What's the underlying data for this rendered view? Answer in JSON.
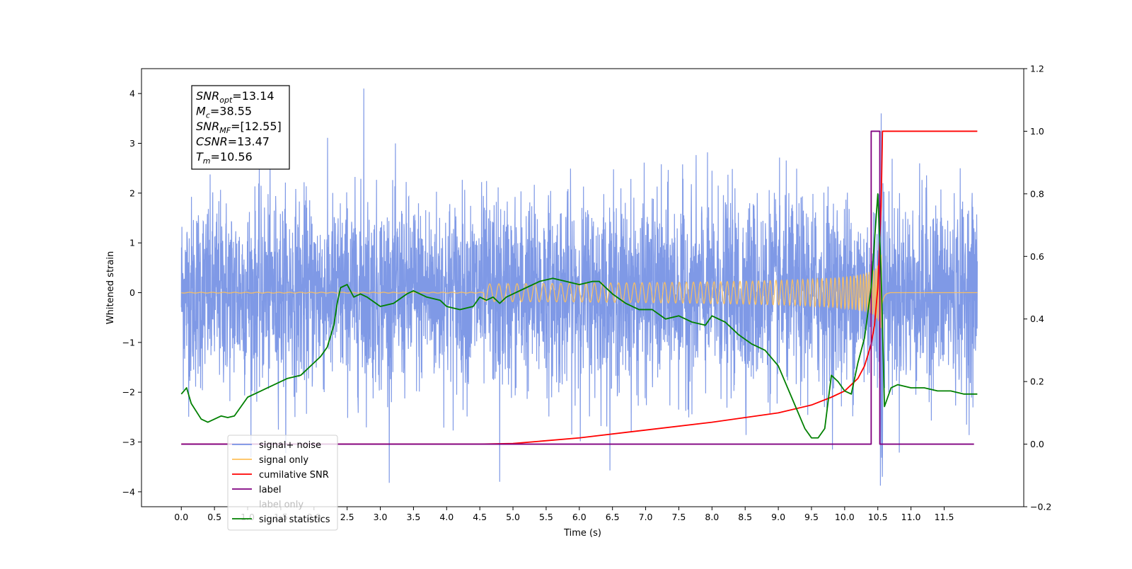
{
  "chart_data": {
    "type": "line",
    "xlabel": "Time (s)",
    "ylabel": "Whitened strain",
    "xlim": [
      -0.6,
      12.7
    ],
    "ylim": [
      -4.3,
      4.5
    ],
    "y2lim": [
      -0.2,
      1.2
    ],
    "x_ticks": [
      "0.0",
      "0.5",
      "1.0",
      "1.5",
      "2.0",
      "2.5",
      "3.0",
      "3.5",
      "4.0",
      "4.5",
      "5.0",
      "5.5",
      "6.0",
      "6.5",
      "7.0",
      "7.5",
      "8.0",
      "8.5",
      "9.0",
      "9.5",
      "10.0",
      "10.5",
      "11.0",
      "11.5"
    ],
    "y_ticks": [
      "4",
      "3",
      "2",
      "1",
      "0",
      "−1",
      "−2",
      "−3",
      "−4"
    ],
    "y2_ticks": [
      "1.2",
      "1.0",
      "0.8",
      "0.6",
      "0.4",
      "0.2",
      "0.0",
      "−0.2"
    ],
    "grid": false,
    "legend_position": "lower-left",
    "annotation": {
      "lines": [
        {
          "main": "SNR",
          "sub": "opt",
          "rest": "=13.14"
        },
        {
          "main": "M",
          "sub": "c",
          "rest": "=38.55"
        },
        {
          "main": "SNR",
          "sub": "MF",
          "rest": "=[12.55]"
        },
        {
          "main": "CSNR",
          "sub": "",
          "rest": "=13.47"
        },
        {
          "main": "T",
          "sub": "m",
          "rest": "=10.56"
        }
      ]
    },
    "series": [
      {
        "name": "signal+ noise",
        "color": "#7893e5",
        "axis": "left",
        "kind": "noise",
        "x_start": 0.0,
        "x_end": 12.0,
        "std": 1.0,
        "peak_time": 10.56,
        "notable_spikes": [
          [
            2.75,
            4.1
          ],
          [
            4.8,
            -3.8
          ],
          [
            10.55,
            3.6
          ],
          [
            10.57,
            -3.7
          ]
        ]
      },
      {
        "name": "signal only",
        "color": "#ffc15a",
        "axis": "left",
        "kind": "chirp",
        "x_start": 0.0,
        "x_end": 12.0,
        "merger_time": 10.56,
        "peak_amplitude": 1.1
      },
      {
        "name": "cumilative SNR",
        "color": "#ff0000",
        "axis": "right",
        "x": [
          0.0,
          4.5,
          5.0,
          6.0,
          7.0,
          8.0,
          9.0,
          9.5,
          9.8,
          10.0,
          10.2,
          10.3,
          10.4,
          10.45,
          10.5,
          10.55,
          10.57,
          12.0
        ],
        "y": [
          0.0,
          0.0,
          0.002,
          0.02,
          0.045,
          0.07,
          0.1,
          0.125,
          0.15,
          0.17,
          0.21,
          0.25,
          0.32,
          0.38,
          0.5,
          0.76,
          1.0,
          1.0
        ]
      },
      {
        "name": "label",
        "color": "#800080",
        "axis": "right",
        "x": [
          0.0,
          10.4,
          10.4,
          10.47,
          10.47,
          10.53,
          10.53,
          11.95
        ],
        "y": [
          0.0,
          0.0,
          1.0,
          1.0,
          1.0,
          1.0,
          0.0,
          0.0
        ]
      },
      {
        "name": "label only",
        "color": "#800080",
        "axis": "right",
        "hidden_behind_legend": true,
        "x": [],
        "y": []
      },
      {
        "name": "signal statistics",
        "color": "#008000",
        "axis": "right",
        "x": [
          0.0,
          0.08,
          0.15,
          0.3,
          0.4,
          0.5,
          0.6,
          0.7,
          0.8,
          0.9,
          1.0,
          1.2,
          1.4,
          1.6,
          1.8,
          2.0,
          2.1,
          2.2,
          2.3,
          2.35,
          2.4,
          2.5,
          2.6,
          2.7,
          2.8,
          3.0,
          3.2,
          3.4,
          3.5,
          3.7,
          3.9,
          4.0,
          4.2,
          4.4,
          4.5,
          4.6,
          4.7,
          4.8,
          4.9,
          5.0,
          5.2,
          5.4,
          5.6,
          5.8,
          6.0,
          6.2,
          6.3,
          6.5,
          6.7,
          6.9,
          7.1,
          7.3,
          7.5,
          7.7,
          7.9,
          8.0,
          8.2,
          8.4,
          8.6,
          8.8,
          9.0,
          9.2,
          9.4,
          9.5,
          9.6,
          9.7,
          9.8,
          9.9,
          10.0,
          10.1,
          10.2,
          10.3,
          10.4,
          10.45,
          10.5,
          10.55,
          10.6,
          10.7,
          10.8,
          11.0,
          11.2,
          11.4,
          11.6,
          11.8,
          12.0
        ],
        "y": [
          0.16,
          0.18,
          0.13,
          0.08,
          0.07,
          0.08,
          0.09,
          0.085,
          0.09,
          0.12,
          0.15,
          0.17,
          0.19,
          0.21,
          0.22,
          0.26,
          0.28,
          0.31,
          0.38,
          0.45,
          0.5,
          0.51,
          0.47,
          0.48,
          0.47,
          0.44,
          0.45,
          0.48,
          0.49,
          0.47,
          0.46,
          0.44,
          0.43,
          0.44,
          0.47,
          0.46,
          0.47,
          0.45,
          0.47,
          0.48,
          0.5,
          0.52,
          0.53,
          0.52,
          0.51,
          0.52,
          0.52,
          0.48,
          0.45,
          0.43,
          0.43,
          0.4,
          0.41,
          0.39,
          0.38,
          0.41,
          0.39,
          0.35,
          0.32,
          0.3,
          0.25,
          0.15,
          0.05,
          0.02,
          0.02,
          0.05,
          0.22,
          0.2,
          0.17,
          0.16,
          0.26,
          0.34,
          0.5,
          0.65,
          0.8,
          0.55,
          0.12,
          0.18,
          0.19,
          0.18,
          0.18,
          0.17,
          0.17,
          0.16,
          0.16
        ]
      }
    ]
  }
}
